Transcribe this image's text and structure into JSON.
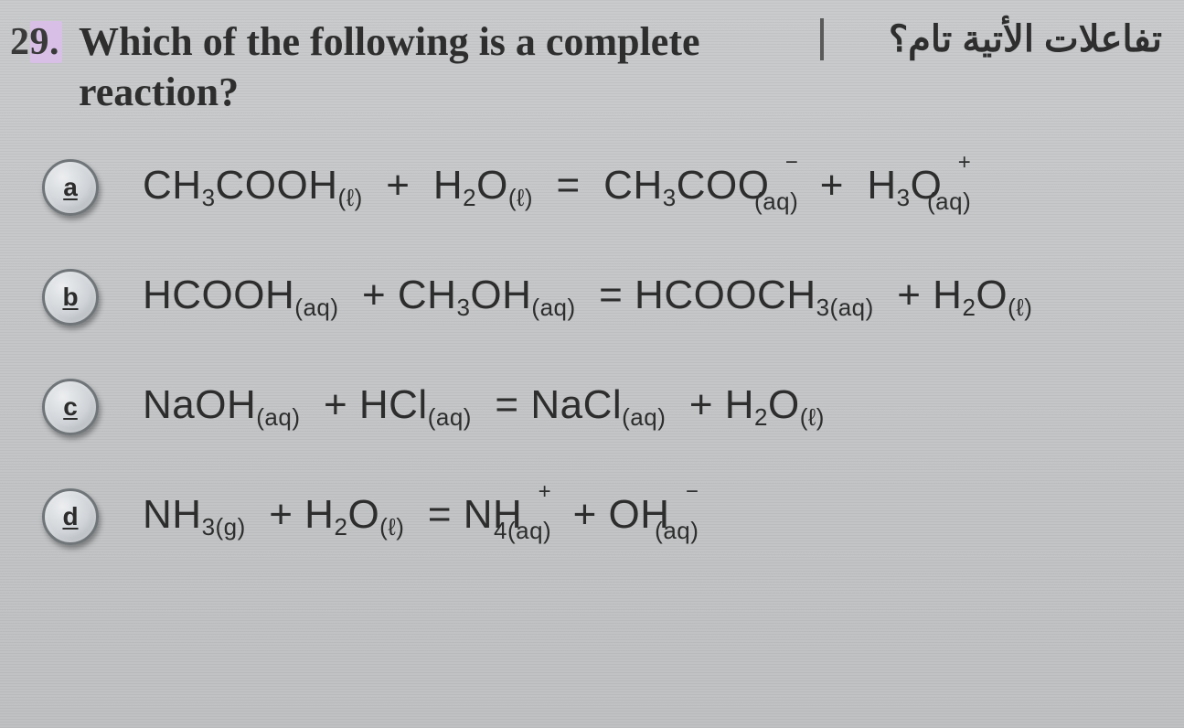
{
  "question": {
    "number_prefix": "2",
    "number_highlight": "9.",
    "text_en_line1": "Which of the following is a complete",
    "text_en_line2": "reaction?",
    "text_ar": "تفاعلات الأتية تام؟"
  },
  "options": [
    {
      "key": "a",
      "reactant1": {
        "formula": "CH₃COOH",
        "phase": "(ℓ)"
      },
      "op1": "+",
      "reactant2": {
        "formula": "H₂O",
        "phase": "(ℓ)"
      },
      "eq": "=",
      "product1": {
        "formula": "CH₃COO",
        "charge": "−",
        "phase": "(aq)"
      },
      "op2": "+",
      "product2": {
        "formula": "H₃O",
        "charge": "+",
        "phase": "(aq)"
      }
    },
    {
      "key": "b",
      "reactant1": {
        "formula": "HCOOH",
        "phase": "(aq)"
      },
      "op1": "+",
      "reactant2": {
        "formula": "CH₃OH",
        "phase": "(aq)"
      },
      "eq": "=",
      "product1": {
        "formula": "HCOOCH₃",
        "phase": "(aq)"
      },
      "op2": "+",
      "product2": {
        "formula": "H₂O",
        "phase": "(ℓ)"
      }
    },
    {
      "key": "c",
      "reactant1": {
        "formula": "NaOH",
        "phase": "(aq)"
      },
      "op1": "+",
      "reactant2": {
        "formula": "HCl",
        "phase": "(aq)"
      },
      "eq": "=",
      "product1": {
        "formula": "NaCl",
        "phase": "(aq)"
      },
      "op2": "+",
      "product2": {
        "formula": "H₂O",
        "phase": "(ℓ)"
      }
    },
    {
      "key": "d",
      "reactant1": {
        "formula": "NH₃",
        "phase": "(g)"
      },
      "op1": "+",
      "reactant2": {
        "formula": "H₂O",
        "phase": "(ℓ)"
      },
      "eq": "=",
      "product1": {
        "formula": "NH",
        "sub4": "4",
        "charge": "+",
        "phase": "(aq)"
      },
      "op2": "+",
      "product2": {
        "formula": "OH",
        "charge": "−",
        "phase": "(aq)"
      }
    }
  ],
  "style": {
    "background_color": "#c5c7c9",
    "text_color": "#2b2b2b",
    "badge_border": "#6f7578",
    "highlight_bg": "#d8bfe6",
    "divider_color": "#5a5a5a",
    "qnum_fontsize": 42,
    "qtext_fontsize": 44,
    "eq_fontsize": 44,
    "badge_size": 56
  }
}
